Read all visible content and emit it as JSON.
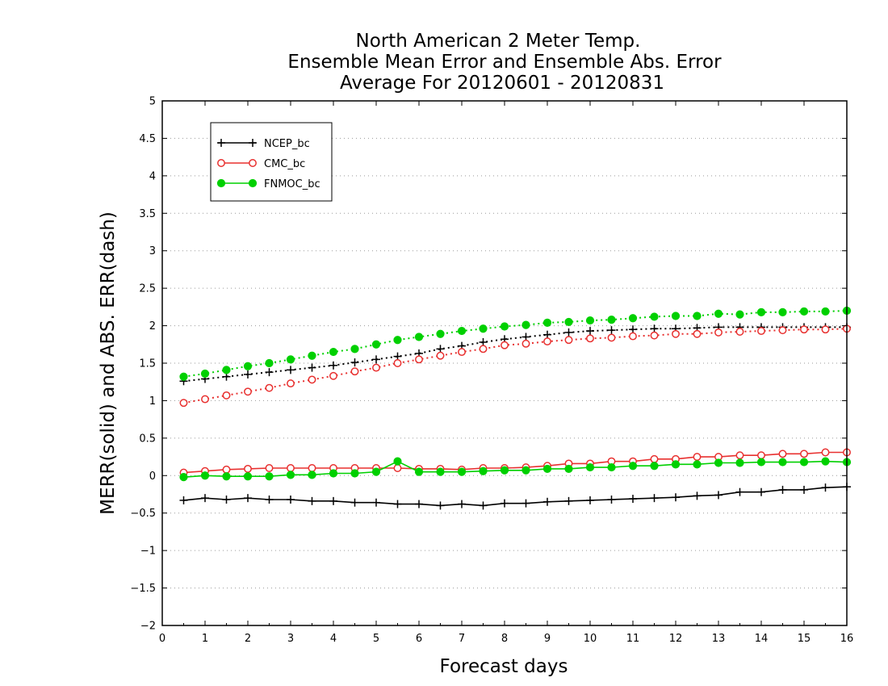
{
  "chart_data": {
    "type": "line",
    "title_lines": [
      "North American 2 Meter Temp.",
      "Ensemble Mean Error and Ensemble Abs. Error",
      "Average For 20120601 - 20120831"
    ],
    "xlabel": "Forecast days",
    "ylabel": "MERR(solid) and ABS. ERR(dash)",
    "xlim": [
      0,
      16
    ],
    "ylim": [
      -2,
      5
    ],
    "xticks": [
      "0",
      "1",
      "2",
      "3",
      "4",
      "5",
      "6",
      "7",
      "8",
      "9",
      "10",
      "11",
      "12",
      "13",
      "14",
      "15",
      "16"
    ],
    "yticks": [
      "−2",
      "−1.5",
      "−1",
      "−0.5",
      "0",
      "0.5",
      "1",
      "1.5",
      "2",
      "2.5",
      "3",
      "3.5",
      "4",
      "4.5",
      "5"
    ],
    "grid": true,
    "legend_position": "top-left",
    "x": [
      0.5,
      1,
      1.5,
      2,
      2.5,
      3,
      3.5,
      4,
      4.5,
      5,
      5.5,
      6,
      6.5,
      7,
      7.5,
      8,
      8.5,
      9,
      9.5,
      10,
      10.5,
      11,
      11.5,
      12,
      12.5,
      13,
      13.5,
      14,
      14.5,
      15,
      15.5,
      16
    ],
    "series": [
      {
        "name": "NCEP_bc",
        "color": "#000000",
        "marker": "plus",
        "merr": [
          -0.33,
          -0.3,
          -0.32,
          -0.3,
          -0.32,
          -0.32,
          -0.34,
          -0.34,
          -0.36,
          -0.36,
          -0.38,
          -0.38,
          -0.4,
          -0.38,
          -0.4,
          -0.37,
          -0.37,
          -0.35,
          -0.34,
          -0.33,
          -0.32,
          -0.31,
          -0.3,
          -0.29,
          -0.27,
          -0.26,
          -0.22,
          -0.22,
          -0.19,
          -0.19,
          -0.16,
          -0.15
        ],
        "abs_err": [
          1.26,
          1.29,
          1.32,
          1.35,
          1.38,
          1.41,
          1.44,
          1.47,
          1.51,
          1.55,
          1.59,
          1.63,
          1.69,
          1.73,
          1.78,
          1.82,
          1.85,
          1.88,
          1.91,
          1.93,
          1.94,
          1.95,
          1.96,
          1.96,
          1.97,
          1.98,
          1.98,
          1.98,
          1.98,
          1.98,
          1.98,
          1.98
        ]
      },
      {
        "name": "CMC_bc",
        "color": "#e8302f",
        "marker": "open-circle",
        "merr": [
          0.04,
          0.06,
          0.08,
          0.09,
          0.1,
          0.1,
          0.1,
          0.1,
          0.1,
          0.1,
          0.1,
          0.09,
          0.09,
          0.08,
          0.1,
          0.1,
          0.11,
          0.13,
          0.16,
          0.16,
          0.19,
          0.19,
          0.22,
          0.22,
          0.25,
          0.25,
          0.27,
          0.27,
          0.29,
          0.29,
          0.31,
          0.31
        ],
        "abs_err": [
          0.97,
          1.02,
          1.07,
          1.12,
          1.17,
          1.23,
          1.28,
          1.33,
          1.39,
          1.44,
          1.5,
          1.55,
          1.6,
          1.65,
          1.69,
          1.74,
          1.76,
          1.79,
          1.81,
          1.83,
          1.84,
          1.86,
          1.87,
          1.89,
          1.89,
          1.91,
          1.92,
          1.93,
          1.94,
          1.95,
          1.95,
          1.96
        ]
      },
      {
        "name": "FNMOC_bc",
        "color": "#00d000",
        "marker": "filled-circle",
        "merr": [
          -0.02,
          0.0,
          -0.01,
          -0.01,
          -0.01,
          0.01,
          0.01,
          0.03,
          0.03,
          0.05,
          0.19,
          0.05,
          0.05,
          0.05,
          0.06,
          0.07,
          0.07,
          0.09,
          0.09,
          0.11,
          0.11,
          0.13,
          0.13,
          0.15,
          0.15,
          0.17,
          0.17,
          0.18,
          0.18,
          0.18,
          0.19,
          0.18
        ],
        "abs_err": [
          1.32,
          1.36,
          1.41,
          1.46,
          1.5,
          1.55,
          1.6,
          1.65,
          1.69,
          1.75,
          1.81,
          1.85,
          1.89,
          1.93,
          1.96,
          1.99,
          2.01,
          2.04,
          2.05,
          2.07,
          2.08,
          2.1,
          2.12,
          2.13,
          2.13,
          2.16,
          2.15,
          2.18,
          2.18,
          2.19,
          2.19,
          2.2
        ]
      }
    ]
  }
}
